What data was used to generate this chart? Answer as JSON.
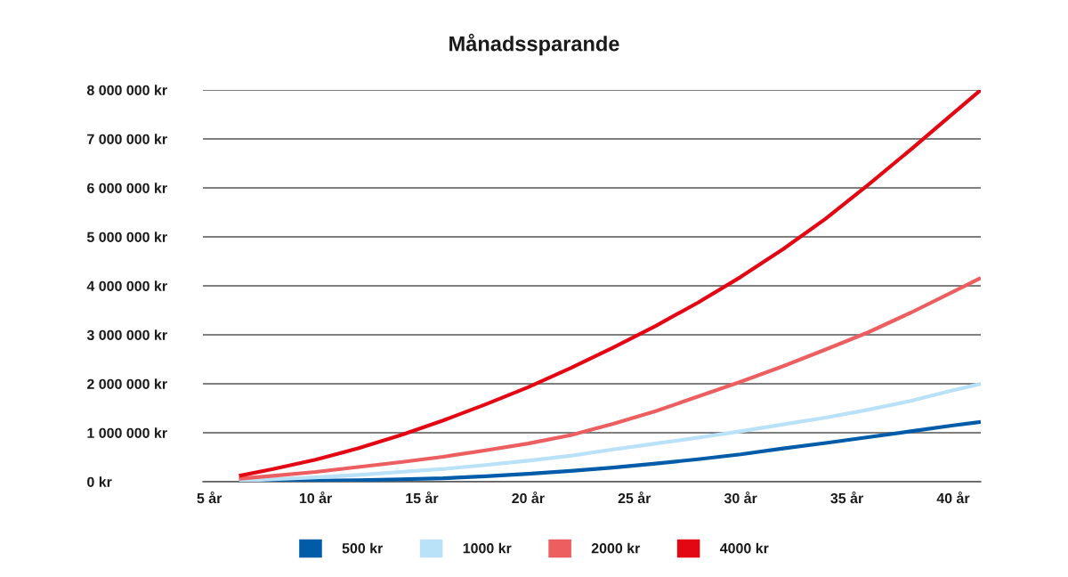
{
  "chart_data": {
    "type": "line",
    "title": "Månadssparande",
    "x": [
      6.4,
      8,
      10,
      12,
      14,
      16,
      18,
      20,
      22,
      24,
      26,
      28,
      30,
      32,
      34,
      36,
      38,
      40,
      41.3
    ],
    "xlim": [
      4.7,
      41.3
    ],
    "xticks": [
      {
        "value": 5,
        "label": "5 år"
      },
      {
        "value": 10,
        "label": "10 år"
      },
      {
        "value": 15,
        "label": "15 år"
      },
      {
        "value": 20,
        "label": "20 år"
      },
      {
        "value": 25,
        "label": "25 år"
      },
      {
        "value": 30,
        "label": "30 år"
      },
      {
        "value": 35,
        "label": "35 år"
      },
      {
        "value": 40,
        "label": "40 år"
      }
    ],
    "ylim": [
      0,
      8000000
    ],
    "yticks": [
      {
        "value": 0,
        "label": "0 kr"
      },
      {
        "value": 1000000,
        "label": "1 000 000 kr"
      },
      {
        "value": 2000000,
        "label": "2 000 000 kr"
      },
      {
        "value": 3000000,
        "label": "3 000 000 kr"
      },
      {
        "value": 4000000,
        "label": "4 000 000 kr"
      },
      {
        "value": 5000000,
        "label": "5 000 000 kr"
      },
      {
        "value": 6000000,
        "label": "6 000 000 kr"
      },
      {
        "value": 7000000,
        "label": "7 000 000 kr"
      },
      {
        "value": 8000000,
        "label": "8 000 000 kr"
      }
    ],
    "grid": "y",
    "legend": "bottom",
    "series": [
      {
        "name": "500 kr",
        "color": "#005ca9",
        "values": [
          10000,
          10000,
          20000,
          30000,
          50000,
          70000,
          110000,
          160000,
          220000,
          290000,
          370000,
          460000,
          560000,
          680000,
          790000,
          910000,
          1030000,
          1150000,
          1220000
        ]
      },
      {
        "name": "1000 kr",
        "color": "#b9e1f7",
        "values": [
          20000,
          50000,
          90000,
          140000,
          200000,
          260000,
          340000,
          430000,
          530000,
          660000,
          780000,
          900000,
          1030000,
          1170000,
          1310000,
          1470000,
          1650000,
          1870000,
          2000000
        ]
      },
      {
        "name": "2000 kr",
        "color": "#ec5e5f",
        "values": [
          60000,
          120000,
          200000,
          300000,
          400000,
          510000,
          640000,
          780000,
          950000,
          1180000,
          1440000,
          1740000,
          2040000,
          2360000,
          2700000,
          3050000,
          3450000,
          3880000,
          4160000
        ]
      },
      {
        "name": "4000 kr",
        "color": "#e30613",
        "values": [
          120000,
          260000,
          450000,
          680000,
          950000,
          1250000,
          1580000,
          1930000,
          2320000,
          2740000,
          3180000,
          3660000,
          4180000,
          4750000,
          5370000,
          6060000,
          6780000,
          7520000,
          8000000
        ]
      }
    ]
  }
}
